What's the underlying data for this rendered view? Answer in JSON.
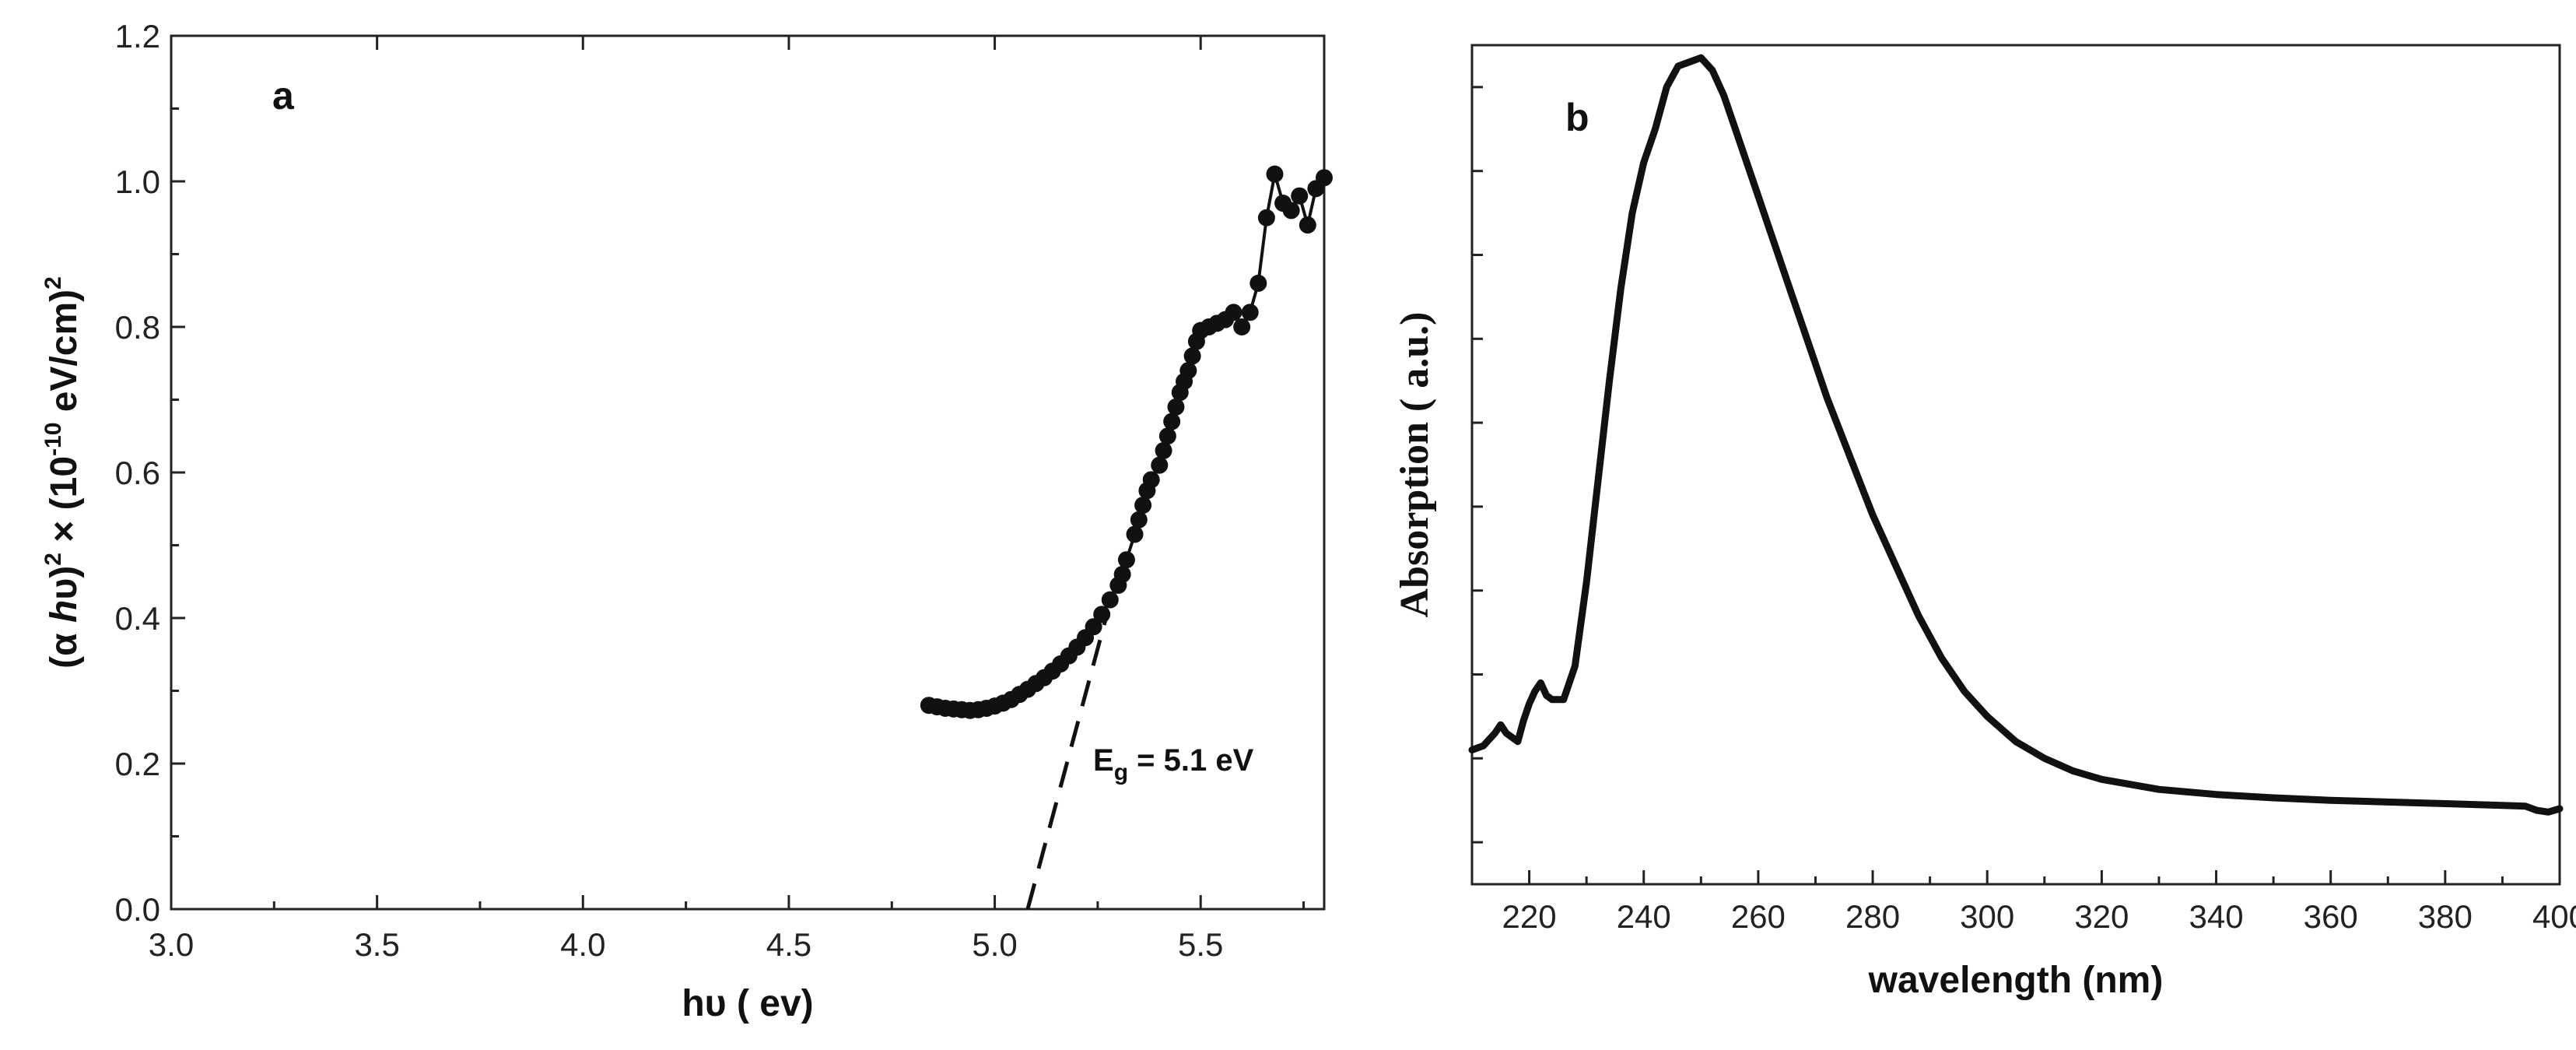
{
  "chart_data": [
    {
      "panel": "a",
      "type": "scatter",
      "xlabel": "hυ ( ev)",
      "ylabel_parts": [
        "(α ",
        "h",
        "υ)",
        "2",
        " × (10",
        "-10",
        " eV/cm)",
        "2"
      ],
      "xlim": [
        3.0,
        5.8
      ],
      "ylim": [
        0.0,
        1.2
      ],
      "xticks": [
        "3.0",
        "3.5",
        "4.0",
        "4.5",
        "5.0",
        "5.5"
      ],
      "xtick_values": [
        3.0,
        3.5,
        4.0,
        4.5,
        5.0,
        5.5
      ],
      "yticks": [
        "0.0",
        "0.2",
        "0.4",
        "0.6",
        "0.8",
        "1.0",
        "1.2"
      ],
      "ytick_values": [
        0.0,
        0.2,
        0.4,
        0.6,
        0.8,
        1.0,
        1.2
      ],
      "annotation": {
        "text_main": "E",
        "text_sub": "g",
        "text_rest": " = 5.1 eV"
      },
      "fit_line": {
        "x": [
          5.08,
          5.27
        ],
        "y": [
          0.0,
          0.4
        ]
      },
      "points": {
        "x": [
          4.84,
          4.86,
          4.88,
          4.9,
          4.92,
          4.94,
          4.96,
          4.98,
          5.0,
          5.02,
          5.04,
          5.06,
          5.08,
          5.1,
          5.12,
          5.14,
          5.16,
          5.18,
          5.2,
          5.22,
          5.24,
          5.26,
          5.28,
          5.3,
          5.31,
          5.32,
          5.34,
          5.35,
          5.36,
          5.37,
          5.38,
          5.4,
          5.41,
          5.42,
          5.43,
          5.44,
          5.45,
          5.46,
          5.47,
          5.48,
          5.49,
          5.5,
          5.52,
          5.54,
          5.56,
          5.58,
          5.6,
          5.62,
          5.64,
          5.66,
          5.68,
          5.7,
          5.72,
          5.74,
          5.76,
          5.78,
          5.8
        ],
        "y": [
          0.28,
          0.278,
          0.276,
          0.275,
          0.274,
          0.273,
          0.274,
          0.276,
          0.279,
          0.283,
          0.288,
          0.295,
          0.302,
          0.31,
          0.318,
          0.327,
          0.337,
          0.348,
          0.36,
          0.373,
          0.388,
          0.405,
          0.425,
          0.445,
          0.46,
          0.48,
          0.515,
          0.535,
          0.555,
          0.575,
          0.59,
          0.61,
          0.63,
          0.65,
          0.67,
          0.69,
          0.71,
          0.725,
          0.74,
          0.76,
          0.78,
          0.795,
          0.8,
          0.805,
          0.81,
          0.82,
          0.8,
          0.82,
          0.86,
          0.95,
          1.01,
          0.97,
          0.96,
          0.98,
          0.94,
          0.99,
          1.005
        ]
      }
    },
    {
      "panel": "b",
      "type": "line",
      "xlabel": "wavelength (nm)",
      "ylabel": "Absorption  ( a.u.)",
      "xlim": [
        210,
        400
      ],
      "ylim": [
        0.0,
        1.0
      ],
      "xticks": [
        "220",
        "240",
        "260",
        "280",
        "300",
        "320",
        "340",
        "360",
        "380",
        "400"
      ],
      "xtick_values": [
        220,
        240,
        260,
        280,
        300,
        320,
        340,
        360,
        380,
        400
      ],
      "ytick_values": [
        0.05,
        0.15,
        0.25,
        0.35,
        0.45,
        0.55,
        0.65,
        0.75,
        0.85,
        0.95
      ],
      "series": [
        {
          "name": "absorption",
          "x": [
            210,
            212,
            214,
            215,
            216,
            218,
            219,
            220,
            221,
            222,
            223,
            224,
            226,
            228,
            230,
            232,
            234,
            236,
            238,
            240,
            242,
            244,
            246,
            248,
            250,
            252,
            254,
            256,
            258,
            260,
            262,
            264,
            266,
            268,
            270,
            272,
            274,
            276,
            278,
            280,
            284,
            288,
            292,
            296,
            300,
            305,
            310,
            315,
            320,
            330,
            340,
            350,
            360,
            370,
            380,
            390,
            394,
            396,
            398,
            400
          ],
          "y": [
            0.16,
            0.165,
            0.18,
            0.19,
            0.18,
            0.17,
            0.195,
            0.215,
            0.23,
            0.24,
            0.225,
            0.22,
            0.22,
            0.26,
            0.36,
            0.48,
            0.6,
            0.71,
            0.8,
            0.86,
            0.9,
            0.95,
            0.975,
            0.98,
            0.985,
            0.97,
            0.94,
            0.9,
            0.86,
            0.82,
            0.78,
            0.74,
            0.7,
            0.66,
            0.62,
            0.58,
            0.545,
            0.51,
            0.475,
            0.44,
            0.38,
            0.32,
            0.27,
            0.23,
            0.2,
            0.17,
            0.15,
            0.135,
            0.125,
            0.113,
            0.107,
            0.103,
            0.1,
            0.098,
            0.096,
            0.094,
            0.093,
            0.088,
            0.086,
            0.09
          ]
        }
      ]
    }
  ]
}
